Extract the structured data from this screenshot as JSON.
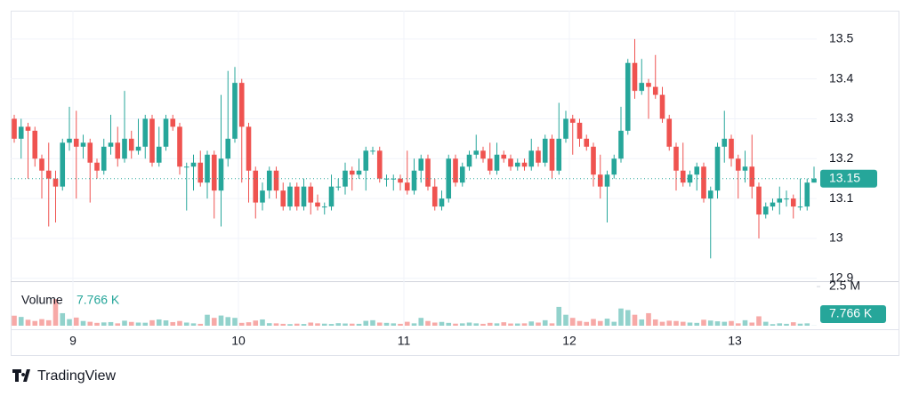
{
  "chart_data": {
    "type": "candlestick",
    "day_labels": [
      "9",
      "10",
      "11",
      "12",
      "13"
    ],
    "open": [
      13.3,
      13.25,
      13.28,
      13.27,
      13.2,
      13.17,
      13.15,
      13.13,
      13.24,
      13.25,
      13.23,
      13.24,
      13.19,
      13.17,
      13.23,
      13.24,
      13.2,
      13.25,
      13.22,
      13.23,
      13.3,
      13.19,
      13.23,
      13.3,
      13.28,
      13.18,
      13.18,
      13.19,
      13.14,
      13.21,
      13.12,
      13.2,
      13.25,
      13.39,
      13.28,
      13.17,
      13.09,
      13.12,
      13.17,
      13.12,
      13.08,
      13.13,
      13.08,
      13.13,
      13.09,
      13.08,
      13.08,
      13.13,
      13.13,
      13.17,
      13.16,
      13.17,
      13.22,
      13.22,
      13.15,
      13.15,
      13.15,
      13.14,
      13.12,
      13.17,
      13.2,
      13.13,
      13.08,
      13.1,
      13.2,
      13.14,
      13.18,
      13.21,
      13.22,
      13.2,
      13.17,
      13.21,
      13.2,
      13.18,
      13.19,
      13.18,
      13.22,
      13.19,
      13.25,
      13.17,
      13.25,
      13.3,
      13.29,
      13.25,
      13.23,
      13.16,
      13.13,
      13.16,
      13.2,
      13.27,
      13.44,
      13.37,
      13.39,
      13.38,
      13.36,
      13.3,
      13.23,
      13.17,
      13.14,
      13.16,
      13.18,
      13.1,
      13.12,
      13.23,
      13.25,
      13.2,
      13.17,
      13.18,
      13.13,
      13.06,
      13.08,
      13.09,
      13.1,
      13.1,
      13.08,
      13.08,
      13.14
    ],
    "high": [
      13.31,
      13.3,
      13.29,
      13.28,
      13.21,
      13.24,
      13.17,
      13.25,
      13.33,
      13.32,
      13.26,
      13.25,
      13.2,
      13.25,
      13.31,
      13.28,
      13.37,
      13.27,
      13.3,
      13.31,
      13.31,
      13.28,
      13.31,
      13.31,
      13.29,
      13.19,
      13.21,
      13.22,
      13.22,
      13.22,
      13.36,
      13.42,
      13.43,
      13.4,
      13.29,
      13.18,
      13.14,
      13.18,
      13.18,
      13.14,
      13.14,
      13.14,
      13.15,
      13.14,
      13.11,
      13.09,
      13.16,
      13.15,
      13.19,
      13.18,
      13.2,
      13.23,
      13.23,
      13.23,
      13.16,
      13.16,
      13.16,
      13.22,
      13.2,
      13.21,
      13.21,
      13.15,
      13.12,
      13.21,
      13.21,
      13.19,
      13.22,
      13.26,
      13.23,
      13.24,
      13.24,
      13.22,
      13.21,
      13.2,
      13.2,
      13.25,
      13.23,
      13.26,
      13.26,
      13.34,
      13.32,
      13.31,
      13.3,
      13.26,
      13.24,
      13.21,
      13.17,
      13.21,
      13.33,
      13.45,
      13.5,
      13.45,
      13.4,
      13.46,
      13.38,
      13.31,
      13.24,
      13.24,
      13.17,
      13.19,
      13.19,
      13.13,
      13.24,
      13.32,
      13.26,
      13.21,
      13.22,
      13.26,
      13.14,
      13.09,
      13.1,
      13.13,
      13.12,
      13.11,
      13.15,
      13.15,
      13.18
    ],
    "low": [
      13.24,
      13.2,
      13.15,
      13.18,
      13.1,
      13.03,
      13.04,
      13.12,
      13.22,
      13.1,
      13.2,
      13.09,
      13.15,
      13.16,
      13.21,
      13.18,
      13.19,
      13.2,
      13.21,
      13.2,
      13.18,
      13.18,
      13.22,
      13.27,
      13.16,
      13.07,
      13.12,
      13.13,
      13.1,
      13.05,
      13.03,
      13.18,
      13.24,
      13.14,
      13.09,
      13.05,
      13.07,
      13.1,
      13.1,
      13.07,
      13.07,
      13.07,
      13.07,
      13.06,
      13.07,
      13.06,
      13.07,
      13.12,
      13.11,
      13.12,
      13.15,
      13.12,
      13.21,
      13.14,
      13.13,
      13.12,
      13.12,
      13.11,
      13.11,
      13.14,
      13.12,
      13.07,
      13.07,
      13.09,
      13.13,
      13.13,
      13.17,
      13.2,
      13.19,
      13.16,
      13.16,
      13.19,
      13.17,
      13.17,
      13.17,
      13.17,
      13.18,
      13.18,
      13.15,
      13.16,
      13.24,
      13.21,
      13.23,
      13.22,
      13.13,
      13.1,
      13.04,
      13.15,
      13.19,
      13.26,
      13.35,
      13.36,
      13.3,
      13.35,
      13.29,
      13.22,
      13.12,
      13.13,
      13.13,
      13.12,
      13.09,
      12.95,
      13.1,
      13.19,
      13.18,
      13.1,
      13.14,
      13.1,
      13.0,
      13.05,
      13.07,
      13.06,
      13.08,
      13.05,
      13.07,
      13.07,
      13.14
    ],
    "close": [
      13.25,
      13.28,
      13.27,
      13.2,
      13.17,
      13.15,
      13.13,
      13.24,
      13.25,
      13.23,
      13.24,
      13.19,
      13.17,
      13.23,
      13.24,
      13.2,
      13.25,
      13.22,
      13.23,
      13.3,
      13.19,
      13.23,
      13.3,
      13.28,
      13.18,
      13.18,
      13.19,
      13.14,
      13.21,
      13.12,
      13.2,
      13.25,
      13.39,
      13.28,
      13.17,
      13.09,
      13.12,
      13.17,
      13.12,
      13.08,
      13.13,
      13.08,
      13.13,
      13.09,
      13.08,
      13.08,
      13.13,
      13.13,
      13.17,
      13.16,
      13.17,
      13.22,
      13.22,
      13.15,
      13.15,
      13.15,
      13.14,
      13.12,
      13.17,
      13.2,
      13.13,
      13.08,
      13.1,
      13.2,
      13.14,
      13.18,
      13.21,
      13.22,
      13.2,
      13.17,
      13.21,
      13.2,
      13.18,
      13.19,
      13.18,
      13.22,
      13.19,
      13.25,
      13.17,
      13.25,
      13.3,
      13.29,
      13.25,
      13.23,
      13.16,
      13.13,
      13.16,
      13.2,
      13.27,
      13.44,
      13.37,
      13.39,
      13.38,
      13.36,
      13.3,
      13.23,
      13.17,
      13.14,
      13.16,
      13.18,
      13.1,
      13.12,
      13.23,
      13.25,
      13.2,
      13.17,
      13.18,
      13.13,
      13.06,
      13.08,
      13.09,
      13.1,
      13.1,
      13.08,
      13.08,
      13.14,
      13.15
    ],
    "volume": [
      640000,
      560000,
      380000,
      300000,
      420000,
      350000,
      1700000,
      800000,
      420000,
      520000,
      300000,
      250000,
      180000,
      210000,
      230000,
      150000,
      320000,
      240000,
      200000,
      190000,
      350000,
      400000,
      340000,
      230000,
      300000,
      200000,
      150000,
      120000,
      700000,
      500000,
      650000,
      550000,
      500000,
      180000,
      220000,
      330000,
      400000,
      160000,
      150000,
      120000,
      100000,
      130000,
      110000,
      200000,
      150000,
      130000,
      110000,
      160000,
      140000,
      130000,
      120000,
      310000,
      350000,
      200000,
      180000,
      150000,
      120000,
      250000,
      150000,
      500000,
      300000,
      200000,
      240000,
      180000,
      130000,
      150000,
      200000,
      150000,
      120000,
      180000,
      150000,
      220000,
      140000,
      140000,
      150000,
      270000,
      200000,
      350000,
      150000,
      1200000,
      700000,
      500000,
      300000,
      240000,
      430000,
      300000,
      450000,
      250000,
      1100000,
      1000000,
      700000,
      400000,
      800000,
      400000,
      250000,
      320000,
      300000,
      250000,
      200000,
      180000,
      380000,
      330000,
      280000,
      250000,
      300000,
      150000,
      350000,
      200000,
      600000,
      250000,
      100000,
      150000,
      120000,
      220000,
      130000,
      150000,
      7766
    ],
    "ylim": [
      12.895,
      13.571
    ],
    "yticks": [
      12.9,
      13,
      13.1,
      13.2,
      13.3,
      13.4,
      13.5
    ],
    "volume_ylim": [
      0,
      2730000
    ],
    "volume_yticks": [
      {
        "value": 2500000,
        "label": "2.5 M"
      }
    ],
    "last_price": 13.15,
    "volume_title": "Volume",
    "last_volume": 7766,
    "last_volume_label": "7.766 K",
    "up_color": "#26a69a",
    "down_color": "#ef5350",
    "grid": true,
    "brand": "TradingView"
  }
}
